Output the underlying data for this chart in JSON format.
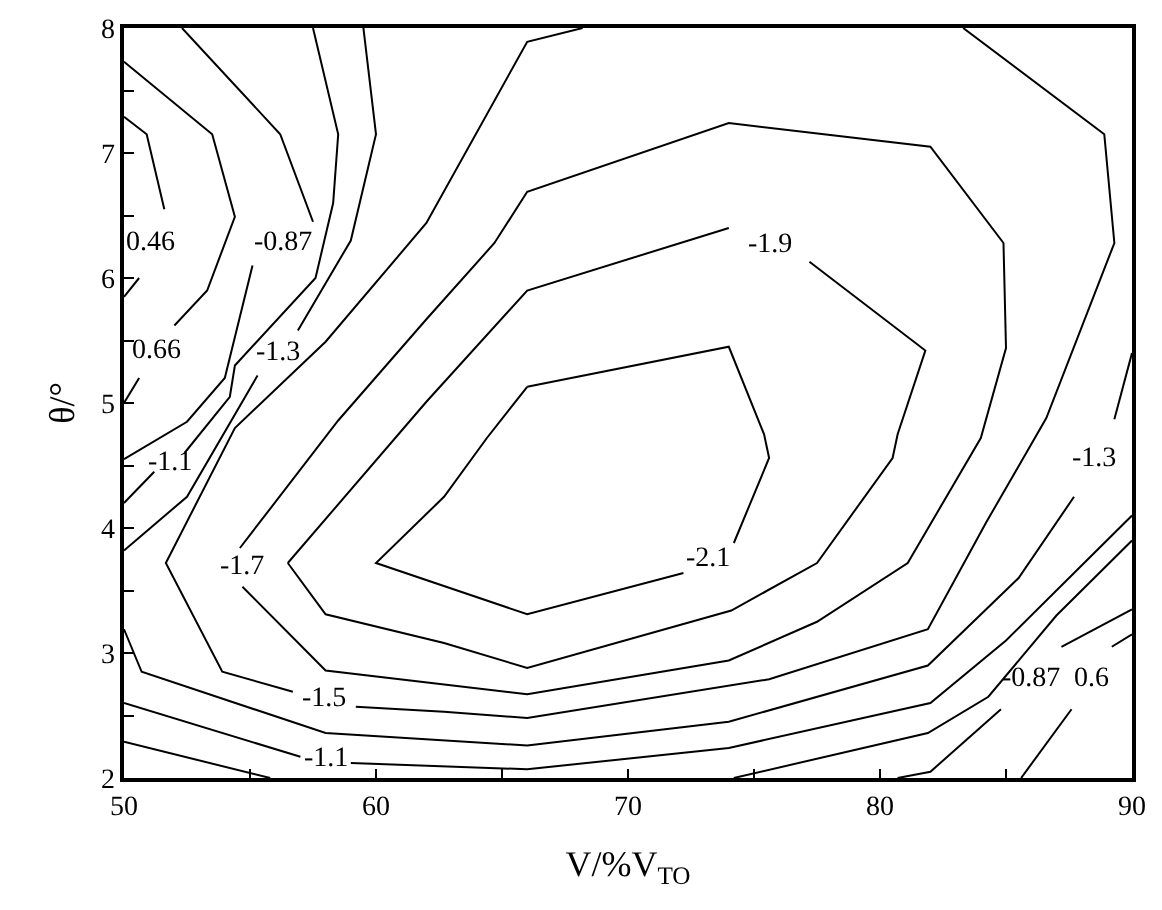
{
  "chart_data": {
    "type": "line",
    "xlabel": "V/%V$_{TO}$",
    "ylabel": "θ/°",
    "xlim": [
      50,
      90
    ],
    "ylim": [
      2,
      8
    ],
    "xticks": [
      50,
      {
        "value": 55,
        "label": null
      },
      60,
      {
        "value": 65,
        "label": null
      },
      70,
      {
        "value": 75,
        "label": null
      },
      80,
      {
        "value": 85,
        "label": null
      },
      90
    ],
    "yticks": [
      2,
      {
        "value": 2.5,
        "label": null
      },
      3,
      {
        "value": 3.5,
        "label": null
      },
      4,
      {
        "value": 4.5,
        "label": null
      },
      5,
      {
        "value": 5.5,
        "label": null
      },
      6,
      {
        "value": 6.5,
        "label": null
      },
      7,
      {
        "value": 7.5,
        "label": null
      },
      8
    ],
    "grid": false,
    "legend": false,
    "marker": "none",
    "line_style": "solid",
    "series": [
      {
        "name": "-2.1",
        "color": "#000000",
        "x": [
          66.0,
          74.0,
          75.4,
          75.6,
          74.2,
          null,
          72.2,
          66.0,
          60.0,
          62.7,
          64.4,
          66.0
        ],
        "values": [
          5.13,
          5.45,
          4.75,
          4.56,
          3.88,
          null,
          3.64,
          3.31,
          3.72,
          4.25,
          4.72,
          5.13
        ]
      },
      {
        "name": "-1.9",
        "color": "#000000",
        "x": [
          56.5,
          58.0,
          62.7,
          66.0,
          74.1,
          77.5,
          80.5,
          80.7,
          81.8,
          77.2,
          null,
          74.0,
          66.0,
          62.0,
          56.5
        ],
        "values": [
          3.72,
          3.31,
          3.08,
          2.88,
          3.34,
          3.72,
          4.56,
          4.75,
          5.42,
          6.13,
          null,
          6.4,
          5.9,
          5.01,
          3.72
        ]
      },
      {
        "name": "-1.7",
        "color": "#000000",
        "x": [
          54.7,
          58.0,
          66.0,
          74.0,
          77.5,
          81.1,
          84.0,
          85.0,
          84.9,
          82.0,
          74.0,
          66.0,
          64.7,
          62.0,
          58.5,
          54.6,
          null,
          54.7
        ],
        "values": [
          3.53,
          2.86,
          2.67,
          2.94,
          3.25,
          3.72,
          4.72,
          5.44,
          6.28,
          7.05,
          7.24,
          6.69,
          6.28,
          5.67,
          4.86,
          3.84,
          null,
          3.53
        ]
      },
      {
        "name": "-1.5",
        "color": "#000000",
        "x": [
          68.2,
          66.0,
          62.0,
          58.0,
          54.4,
          51.66,
          53.9,
          56.7,
          null,
          59.2,
          62.7,
          66.0,
          75.6,
          81.9,
          84.2,
          86.6,
          89.3,
          88.9,
          83.3
        ],
        "values": [
          8.0,
          7.89,
          6.44,
          5.49,
          4.8,
          3.72,
          2.85,
          2.69,
          null,
          2.57,
          2.53,
          2.48,
          2.79,
          3.19,
          4.04,
          4.88,
          6.28,
          7.15,
          8.0
        ]
      },
      {
        "name": "-1.3",
        "color": "#000000",
        "x": [
          50,
          52.5,
          55.3,
          null,
          56.9,
          59.0,
          60.0,
          59.5
        ],
        "values": [
          3.82,
          4.25,
          5.22,
          null,
          5.58,
          6.3,
          7.15,
          8.0
        ]
      },
      {
        "name": "-1.3",
        "color": "#000000",
        "x": [
          50,
          50.7,
          58,
          66,
          74,
          81.9,
          85.5,
          87.7,
          null,
          89.3,
          90
        ],
        "values": [
          3.19,
          2.85,
          2.36,
          2.26,
          2.45,
          2.9,
          3.6,
          4.25,
          null,
          4.87,
          5.4
        ]
      },
      {
        "name": "-1.1",
        "color": "#000000",
        "x": [
          50,
          51.2,
          null,
          52.4,
          54.2,
          54.4,
          57.6,
          58.3,
          58.5,
          57.5
        ],
        "values": [
          4.2,
          4.45,
          null,
          4.6,
          5.05,
          5.3,
          6.0,
          6.6,
          7.15,
          8.0
        ]
      },
      {
        "name": "-1.1",
        "color": "#000000",
        "x": [
          50,
          57.0,
          null,
          59.0,
          66,
          74,
          82,
          85,
          88,
          90
        ],
        "values": [
          2.6,
          2.17,
          null,
          2.12,
          2.07,
          2.24,
          2.6,
          3.1,
          3.7,
          4.1
        ]
      },
      {
        "color": "#000000",
        "x": [
          50,
          55.8
        ],
        "values": [
          2.29,
          2.0
        ]
      },
      {
        "name": "-0.87",
        "color": "#000000",
        "x": [
          52.3,
          56.2,
          57.5,
          null,
          55.1,
          54.0,
          52.5,
          50
        ],
        "values": [
          8.0,
          7.15,
          6.45,
          null,
          6.1,
          5.2,
          4.85,
          4.55
        ]
      },
      {
        "name": "0.66",
        "color": "#000000",
        "x": [
          50,
          53.5,
          54.4,
          53.3,
          52.0,
          null,
          50.6,
          50
        ],
        "values": [
          7.73,
          7.15,
          6.49,
          5.9,
          5.62,
          null,
          5.2,
          5.0
        ]
      },
      {
        "name": "0.46",
        "color": "#000000",
        "x": [
          50,
          50.9,
          51.6,
          null,
          50.6,
          50
        ],
        "values": [
          7.29,
          7.15,
          6.55,
          null,
          6.0,
          5.85
        ]
      },
      {
        "color": "#000000",
        "x": [
          74.2,
          81.9,
          84.3,
          87.0,
          90
        ],
        "values": [
          2.0,
          2.36,
          2.65,
          3.3,
          3.9
        ]
      },
      {
        "name": "-0.87",
        "color": "#000000",
        "x": [
          80.7,
          82.0,
          84.8,
          null,
          87.2,
          90
        ],
        "values": [
          2.0,
          2.05,
          2.55,
          null,
          3.05,
          3.35
        ]
      },
      {
        "name": "0.6",
        "color": "#000000",
        "x": [
          85.6,
          87.6,
          null,
          89.2,
          90
        ],
        "values": [
          2.0,
          2.55,
          null,
          3.05,
          3.15
        ]
      }
    ]
  }
}
